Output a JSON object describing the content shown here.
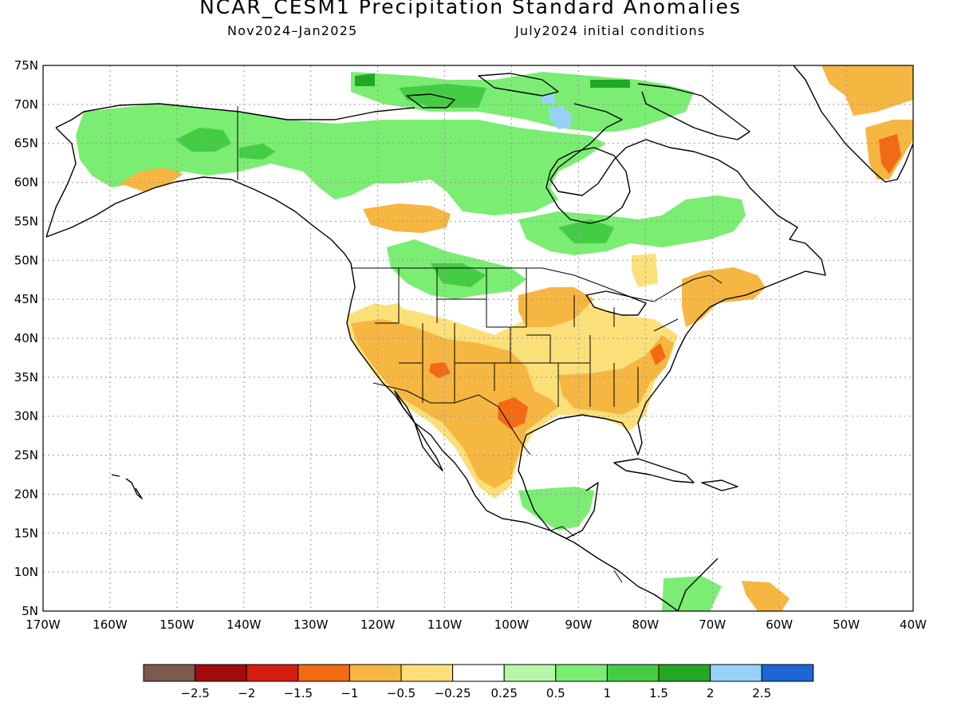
{
  "title": "NCAR_CESM1 Precipitation Standard Anomalies",
  "subtitle_left": "Nov2024–Jan2025",
  "subtitle_right": "July2024 initial conditions",
  "lat_labels": [
    "75N",
    "70N",
    "65N",
    "60N",
    "55N",
    "50N",
    "45N",
    "40N",
    "35N",
    "30N",
    "25N",
    "20N",
    "15N",
    "10N",
    "5N"
  ],
  "lon_labels": [
    "170W",
    "160W",
    "150W",
    "140W",
    "130W",
    "120W",
    "110W",
    "100W",
    "90W",
    "80W",
    "70W",
    "60W",
    "50W",
    "40W"
  ],
  "legend": {
    "colors": [
      "#7a5a4e",
      "#a10c0c",
      "#d71e0e",
      "#f26a14",
      "#f6b642",
      "#fbe07a",
      "#ffffff",
      "#b6f6a8",
      "#7aed72",
      "#44cd44",
      "#22a822",
      "#97d2f6",
      "#1d66d8"
    ],
    "labels": [
      "−2.5",
      "−2",
      "−1.5",
      "−1",
      "−0.5",
      "−0.25",
      "0.25",
      "0.5",
      "1",
      "1.5",
      "2",
      "2.5"
    ]
  },
  "map": {
    "lat_range": [
      5,
      75
    ],
    "lon_range": [
      -170,
      -40
    ],
    "data_units": "standard anomaly",
    "anomaly_regions": [
      {
        "region": "Northern Canada / Alaska",
        "category": "0.5 to 1.5 (wetter)"
      },
      {
        "region": "Hudson Bay north",
        "category": "2 to 2.5"
      },
      {
        "region": "Southwest US / Mexico",
        "category": "-0.5 to -1.5 (drier)"
      },
      {
        "region": "Texas",
        "category": "-1 to -1.5"
      },
      {
        "region": "Greenland south",
        "category": "-1 to -1.5"
      },
      {
        "region": "Central America",
        "category": "0.5 to 1"
      }
    ]
  }
}
